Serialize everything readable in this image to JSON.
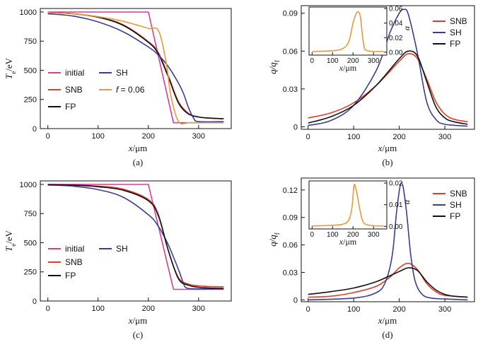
{
  "chart_data": [
    {
      "type": "line",
      "panel_label": "(a)",
      "xlabel": "x/μm",
      "ylabel": "T_e/eV",
      "xlim": [
        -15,
        365
      ],
      "ylim": [
        0,
        1030
      ],
      "xticks": [
        0,
        100,
        200,
        300
      ],
      "yticks": [
        0,
        250,
        500,
        750,
        1000
      ],
      "legend": {
        "position": "bottom-left",
        "columns": 2
      },
      "series": [
        {
          "name": "initial",
          "color": "#d63d97",
          "x": [
            0,
            200,
            250,
            350
          ],
          "y": [
            1000,
            1000,
            50,
            50
          ]
        },
        {
          "name": "SNB",
          "color": "#e03c2c",
          "x": [
            0,
            50,
            100,
            150,
            200,
            220,
            240,
            260,
            280,
            300,
            320,
            350
          ],
          "y": [
            995,
            985,
            955,
            890,
            745,
            650,
            450,
            230,
            130,
            100,
            90,
            85
          ]
        },
        {
          "name": "FP",
          "color": "#111111",
          "x": [
            0,
            50,
            100,
            150,
            200,
            220,
            240,
            260,
            280,
            300,
            320,
            350
          ],
          "y": [
            995,
            985,
            955,
            885,
            740,
            640,
            440,
            220,
            125,
            100,
            90,
            85
          ]
        },
        {
          "name": "SH",
          "color": "#3b3d8f",
          "x": [
            0,
            50,
            100,
            150,
            200,
            220,
            240,
            260,
            270,
            280,
            290,
            300,
            350
          ],
          "y": [
            985,
            965,
            915,
            830,
            700,
            630,
            530,
            390,
            300,
            180,
            90,
            60,
            60
          ]
        },
        {
          "name": "f = 0.06",
          "color": "#e69a3a",
          "x": [
            0,
            50,
            100,
            150,
            200,
            220,
            235,
            245,
            260,
            280,
            300,
            350
          ],
          "y": [
            995,
            985,
            960,
            920,
            860,
            840,
            580,
            280,
            60,
            50,
            50,
            50
          ]
        }
      ]
    },
    {
      "type": "line",
      "panel_label": "(b)",
      "xlabel": "x/μm",
      "ylabel": "q/q_f",
      "xlim": [
        -15,
        365
      ],
      "ylim": [
        -0.002,
        0.096
      ],
      "xticks": [
        0,
        100,
        200,
        300
      ],
      "yticks": [
        0,
        0.03,
        0.06,
        0.09
      ],
      "ytick_labels": [
        "0",
        "0.03",
        "0.06",
        "0.09"
      ],
      "legend": {
        "position": "top-right"
      },
      "series": [
        {
          "name": "SNB",
          "color": "#e03c2c",
          "x": [
            0,
            50,
            100,
            150,
            200,
            220,
            240,
            260,
            280,
            300,
            320,
            350
          ],
          "y": [
            0.007,
            0.011,
            0.019,
            0.033,
            0.052,
            0.058,
            0.054,
            0.038,
            0.02,
            0.01,
            0.006,
            0.004
          ]
        },
        {
          "name": "SH",
          "color": "#3b3d8f",
          "x": [
            0,
            50,
            100,
            150,
            180,
            200,
            210,
            220,
            240,
            260,
            280,
            300,
            350
          ],
          "y": [
            0.001,
            0.005,
            0.017,
            0.045,
            0.075,
            0.09,
            0.093,
            0.089,
            0.058,
            0.02,
            0.006,
            0.002,
            0.0005
          ]
        },
        {
          "name": "FP",
          "color": "#111111",
          "x": [
            0,
            50,
            100,
            150,
            200,
            220,
            240,
            260,
            280,
            300,
            320,
            350
          ],
          "y": [
            0.003,
            0.008,
            0.017,
            0.033,
            0.054,
            0.06,
            0.056,
            0.036,
            0.016,
            0.007,
            0.004,
            0.002
          ]
        }
      ],
      "inset": {
        "xlabel": "x/μm",
        "ylabel": "α",
        "xlim": [
          -15,
          365
        ],
        "ylim": [
          -0.004,
          0.062
        ],
        "xticks": [
          0,
          100,
          200,
          300
        ],
        "yticks": [
          0,
          0.02,
          0.04,
          0.06
        ],
        "ytick_labels": [
          "0.00",
          "0.02",
          "0.04",
          "0.06"
        ],
        "series": [
          {
            "name": "α",
            "color": "#e69a3a",
            "x": [
              0,
              100,
              150,
              180,
              200,
              220,
              235,
              245,
              255,
              270,
              300,
              350
            ],
            "y": [
              0.001,
              0.002,
              0.005,
              0.015,
              0.04,
              0.055,
              0.05,
              0.025,
              0.006,
              0.002,
              0.001,
              0.001
            ]
          }
        ]
      }
    },
    {
      "type": "line",
      "panel_label": "(c)",
      "xlabel": "x/μm",
      "ylabel": "T_e/eV",
      "xlim": [
        -15,
        365
      ],
      "ylim": [
        0,
        1030
      ],
      "xticks": [
        0,
        100,
        200,
        300
      ],
      "yticks": [
        0,
        250,
        500,
        750,
        1000
      ],
      "legend": {
        "position": "bottom-left",
        "columns": 2
      },
      "series": [
        {
          "name": "initial",
          "color": "#d63d97",
          "x": [
            0,
            200,
            250,
            350
          ],
          "y": [
            1000,
            1000,
            100,
            100
          ]
        },
        {
          "name": "SNB",
          "color": "#e03c2c",
          "x": [
            0,
            50,
            100,
            150,
            200,
            220,
            240,
            260,
            280,
            300,
            320,
            350
          ],
          "y": [
            998,
            995,
            985,
            960,
            870,
            740,
            430,
            200,
            145,
            130,
            125,
            122
          ]
        },
        {
          "name": "SH",
          "color": "#3b3d8f",
          "x": [
            0,
            50,
            100,
            150,
            200,
            220,
            240,
            260,
            270,
            275,
            290,
            350
          ],
          "y": [
            995,
            985,
            955,
            890,
            740,
            640,
            480,
            270,
            150,
            115,
            105,
            105
          ]
        },
        {
          "name": "FP",
          "color": "#111111",
          "x": [
            0,
            50,
            100,
            150,
            200,
            220,
            240,
            260,
            280,
            300,
            320,
            350
          ],
          "y": [
            998,
            994,
            980,
            950,
            860,
            730,
            430,
            190,
            135,
            118,
            112,
            108
          ]
        }
      ]
    },
    {
      "type": "line",
      "panel_label": "(d)",
      "xlabel": "x/μm",
      "ylabel": "q/q_f",
      "xlim": [
        -15,
        365
      ],
      "ylim": [
        -0.002,
        0.133
      ],
      "xticks": [
        0,
        100,
        200,
        300
      ],
      "yticks": [
        0,
        0.03,
        0.06,
        0.09,
        0.12
      ],
      "ytick_labels": [
        "0",
        "0.03",
        "0.06",
        "0.09",
        "0.12"
      ],
      "legend": {
        "position": "top-right"
      },
      "series": [
        {
          "name": "SNB",
          "color": "#e03c2c",
          "x": [
            0,
            50,
            100,
            150,
            180,
            200,
            220,
            240,
            260,
            280,
            300,
            350
          ],
          "y": [
            0.003,
            0.004,
            0.008,
            0.015,
            0.025,
            0.035,
            0.04,
            0.033,
            0.018,
            0.009,
            0.005,
            0.003
          ]
        },
        {
          "name": "SH",
          "color": "#3b3d8f",
          "x": [
            0,
            100,
            150,
            170,
            185,
            195,
            205,
            215,
            225,
            235,
            250,
            270,
            300,
            350
          ],
          "y": [
            0.0,
            0.002,
            0.008,
            0.02,
            0.05,
            0.1,
            0.128,
            0.1,
            0.05,
            0.02,
            0.006,
            0.002,
            0.001,
            0.0
          ]
        },
        {
          "name": "FP",
          "color": "#111111",
          "x": [
            0,
            50,
            100,
            150,
            200,
            220,
            240,
            260,
            280,
            300,
            320,
            350
          ],
          "y": [
            0.006,
            0.009,
            0.013,
            0.02,
            0.031,
            0.035,
            0.032,
            0.02,
            0.011,
            0.006,
            0.004,
            0.003
          ]
        }
      ],
      "inset": {
        "xlabel": "x/μm",
        "ylabel": "α",
        "xlim": [
          -15,
          365
        ],
        "ylim": [
          -0.0012,
          0.021
        ],
        "xticks": [
          0,
          100,
          200,
          300
        ],
        "yticks": [
          0,
          0.01,
          0.02
        ],
        "ytick_labels": [
          "0.00",
          "0.01",
          "0.02"
        ],
        "series": [
          {
            "name": "α",
            "color": "#e69a3a",
            "x": [
              0,
              100,
              150,
              180,
              195,
              205,
              215,
              225,
              235,
              245,
              260,
              300,
              350
            ],
            "y": [
              0.0002,
              0.0005,
              0.001,
              0.003,
              0.009,
              0.019,
              0.017,
              0.012,
              0.007,
              0.003,
              0.001,
              0.0003,
              0.0002
            ]
          }
        ]
      }
    }
  ]
}
